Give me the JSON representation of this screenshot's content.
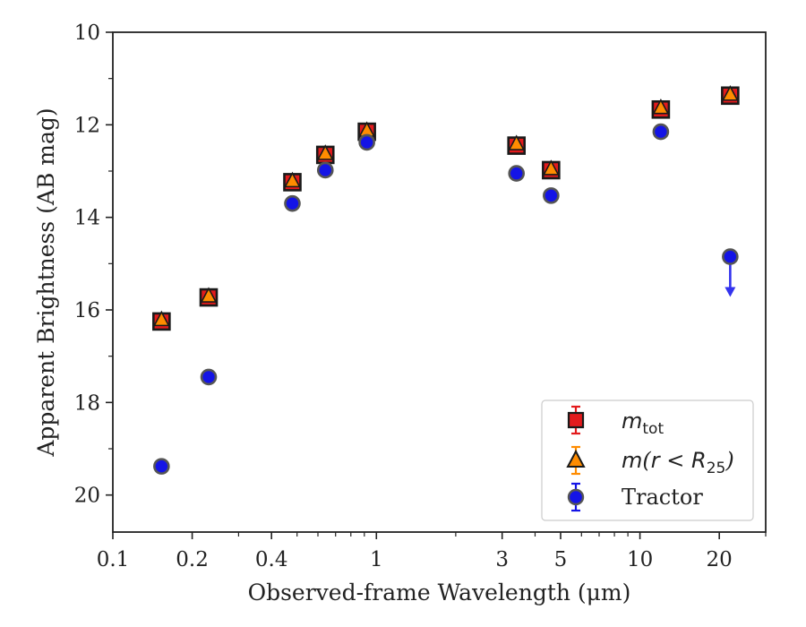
{
  "chart_data": {
    "type": "scatter",
    "xlabel": "Observed-frame Wavelength (μm)",
    "ylabel": "Apparent Brightness (AB mag)",
    "xscale": "log",
    "xlim": [
      0.1,
      30
    ],
    "ylim": [
      20.8,
      10
    ],
    "y_inverted": true,
    "x_ticks": [
      {
        "value": 0.1,
        "label": "0.1"
      },
      {
        "value": 0.2,
        "label": "0.2"
      },
      {
        "value": 0.4,
        "label": "0.4"
      },
      {
        "value": 1,
        "label": "1"
      },
      {
        "value": 3,
        "label": "3"
      },
      {
        "value": 5,
        "label": "5"
      },
      {
        "value": 10,
        "label": "10"
      },
      {
        "value": 20,
        "label": "20"
      }
    ],
    "y_ticks": [
      {
        "value": 10,
        "label": "10"
      },
      {
        "value": 12,
        "label": "12"
      },
      {
        "value": 14,
        "label": "14"
      },
      {
        "value": 16,
        "label": "16"
      },
      {
        "value": 18,
        "label": "18"
      },
      {
        "value": 20,
        "label": "20"
      }
    ],
    "legend": {
      "position": "lower right",
      "entries": [
        {
          "math": "m",
          "sub": "tot",
          "text": ""
        },
        {
          "math": "m",
          "sub": "",
          "text": "m(r < R25)"
        },
        {
          "math": "",
          "sub": "",
          "text": "Tractor"
        }
      ]
    },
    "series": [
      {
        "name": "m_tot",
        "marker": "square",
        "color": "#e31a1c",
        "x": [
          0.153,
          0.231,
          0.48,
          0.64,
          0.92,
          3.4,
          4.6,
          12.0,
          22.0
        ],
        "y": [
          16.25,
          15.73,
          13.24,
          12.65,
          12.15,
          12.45,
          12.98,
          11.67,
          11.37
        ]
      },
      {
        "name": "m(r < R25)",
        "marker": "triangle",
        "color": "#ff8c00",
        "x": [
          0.153,
          0.231,
          0.48,
          0.64,
          0.92,
          3.4,
          4.6,
          12.0,
          22.0
        ],
        "y": [
          16.22,
          15.71,
          13.22,
          12.63,
          12.13,
          12.42,
          12.96,
          11.64,
          11.35
        ]
      },
      {
        "name": "Tractor",
        "marker": "circle",
        "color": "#1414e6",
        "x": [
          0.153,
          0.231,
          0.48,
          0.64,
          0.92,
          3.4,
          4.6,
          12.0,
          22.0
        ],
        "y": [
          19.38,
          17.45,
          13.7,
          12.98,
          12.38,
          13.05,
          13.53,
          12.15,
          14.85
        ],
        "upper_limit": [
          false,
          false,
          false,
          false,
          false,
          false,
          false,
          false,
          true
        ]
      }
    ],
    "colors": {
      "axis": "#222222",
      "marker_edge": "#1a1a1a",
      "tractor_face": "#1414e6",
      "tractor_edge": "#555555",
      "upper_limit_arrow": "#3333ee",
      "legend_border": "#cccccc"
    }
  }
}
